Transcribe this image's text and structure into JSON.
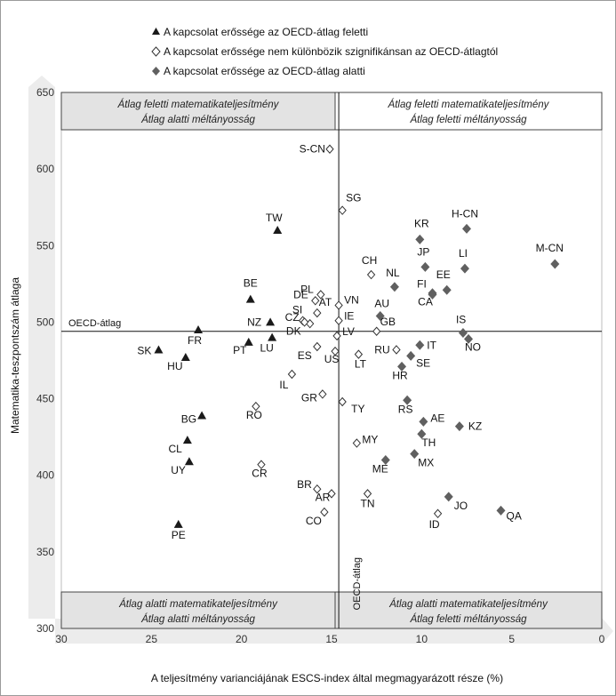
{
  "chart_data": {
    "type": "scatter",
    "xlabel": "A teljesítmény varianciájának ESCS-index által megmagyarázott része (%)",
    "ylabel": "Matematika-teszpontszám átlaga",
    "xlim": [
      30,
      0
    ],
    "ylim": [
      300,
      650
    ],
    "x_ticks": [
      30,
      25,
      20,
      15,
      10,
      5,
      0
    ],
    "y_ticks": [
      300,
      350,
      400,
      450,
      500,
      550,
      600,
      650
    ],
    "oecd_avg_x": 14.6,
    "oecd_avg_y": 494,
    "oecd_label_h": "OECD-átlag",
    "oecd_label_v": "OECD-átlag",
    "grid": false,
    "legend_position": "top",
    "legend": [
      {
        "key": "above",
        "marker": "triangle",
        "text": "A kapcsolat erőssége az OECD-átlag feletti"
      },
      {
        "key": "nosig",
        "marker": "diamond-open",
        "text": "A kapcsolat erőssége nem különbözik szignifikánsan az OECD-átlagtól"
      },
      {
        "key": "below",
        "marker": "diamond-filled",
        "text": "A kapcsolat erőssége az OECD-átlag alatti"
      }
    ],
    "quadrants": {
      "top_left": [
        "Átlag feletti matematikateljesítmény",
        "Átlag alatti méltányosság"
      ],
      "top_right": [
        "Átlag feletti matematikateljesítmény",
        "Átlag  feletti méltányosság"
      ],
      "bottom_left": [
        "Átlag alatti  matematikateljesítmény",
        "Átlag alatti méltányosság"
      ],
      "bottom_right": [
        "Átlag alatti  matematikateljesítmény",
        "Átlag feletti méltányosság"
      ]
    },
    "colors": {
      "marker": "#1a1a1a",
      "filled_diamond": "#606060",
      "band_fill": "#e3e3e3",
      "arrow_fill": "#ececec"
    },
    "points": [
      {
        "label": "S-CN",
        "x": 15.1,
        "y": 613,
        "cat": "nosig"
      },
      {
        "label": "SG",
        "x": 14.4,
        "y": 573,
        "cat": "nosig"
      },
      {
        "label": "TW",
        "x": 18.0,
        "y": 560,
        "cat": "above"
      },
      {
        "label": "KR",
        "x": 10.1,
        "y": 554,
        "cat": "below"
      },
      {
        "label": "H-CN",
        "x": 7.5,
        "y": 561,
        "cat": "below"
      },
      {
        "label": "M-CN",
        "x": 2.6,
        "y": 538,
        "cat": "below"
      },
      {
        "label": "JP",
        "x": 9.8,
        "y": 536,
        "cat": "below"
      },
      {
        "label": "LI",
        "x": 7.6,
        "y": 535,
        "cat": "below"
      },
      {
        "label": "CH",
        "x": 12.8,
        "y": 531,
        "cat": "nosig"
      },
      {
        "label": "NL",
        "x": 11.5,
        "y": 523,
        "cat": "below"
      },
      {
        "label": "EE",
        "x": 8.6,
        "y": 521,
        "cat": "below"
      },
      {
        "label": "FI",
        "x": 9.4,
        "y": 519,
        "cat": "below"
      },
      {
        "label": "CA",
        "x": 9.4,
        "y": 518,
        "cat": "below"
      },
      {
        "label": "BE",
        "x": 19.5,
        "y": 515,
        "cat": "above"
      },
      {
        "label": "SI",
        "x": 16.6,
        "y": 501,
        "cat": "nosig"
      },
      {
        "label": "CZ",
        "x": 16.2,
        "y": 499,
        "cat": "nosig"
      },
      {
        "label": "VN",
        "x": 14.6,
        "y": 511,
        "cat": "nosig"
      },
      {
        "label": "PL",
        "x": 15.6,
        "y": 518,
        "cat": "nosig"
      },
      {
        "label": "DE",
        "x": 15.9,
        "y": 514,
        "cat": "nosig"
      },
      {
        "label": "AU",
        "x": 12.3,
        "y": 504,
        "cat": "below"
      },
      {
        "label": "IS",
        "x": 7.7,
        "y": 493,
        "cat": "below"
      },
      {
        "label": "NO",
        "x": 7.4,
        "y": 489,
        "cat": "below"
      },
      {
        "label": "NZ",
        "x": 18.4,
        "y": 500,
        "cat": "above"
      },
      {
        "label": "IE",
        "x": 14.6,
        "y": 501,
        "cat": "nosig"
      },
      {
        "label": "GB",
        "x": 12.5,
        "y": 494,
        "cat": "nosig"
      },
      {
        "label": "AT",
        "x": 15.8,
        "y": 506,
        "cat": "nosig"
      },
      {
        "label": "DK",
        "x": 16.5,
        "y": 500,
        "cat": "nosig"
      },
      {
        "label": "FR",
        "x": 22.4,
        "y": 495,
        "cat": "above"
      },
      {
        "label": "PT",
        "x": 19.6,
        "y": 487,
        "cat": "above"
      },
      {
        "label": "LU",
        "x": 18.3,
        "y": 490,
        "cat": "above"
      },
      {
        "label": "LV",
        "x": 14.7,
        "y": 491,
        "cat": "nosig"
      },
      {
        "label": "RU",
        "x": 11.4,
        "y": 482,
        "cat": "nosig"
      },
      {
        "label": "IT",
        "x": 10.1,
        "y": 485,
        "cat": "below"
      },
      {
        "label": "SK",
        "x": 24.6,
        "y": 482,
        "cat": "above"
      },
      {
        "label": "HU",
        "x": 23.1,
        "y": 477,
        "cat": "above"
      },
      {
        "label": "ES",
        "x": 15.8,
        "y": 484,
        "cat": "nosig"
      },
      {
        "label": "US",
        "x": 14.8,
        "y": 481,
        "cat": "nosig"
      },
      {
        "label": "LT",
        "x": 13.5,
        "y": 479,
        "cat": "nosig"
      },
      {
        "label": "SE",
        "x": 10.6,
        "y": 478,
        "cat": "below"
      },
      {
        "label": "HR",
        "x": 11.1,
        "y": 471,
        "cat": "below"
      },
      {
        "label": "IL",
        "x": 17.2,
        "y": 466,
        "cat": "nosig"
      },
      {
        "label": "GR",
        "x": 15.5,
        "y": 453,
        "cat": "nosig"
      },
      {
        "label": "RS",
        "x": 10.8,
        "y": 449,
        "cat": "below"
      },
      {
        "label": "TY",
        "x": 14.4,
        "y": 448,
        "cat": "nosig"
      },
      {
        "label": "RO",
        "x": 19.2,
        "y": 445,
        "cat": "nosig"
      },
      {
        "label": "BG",
        "x": 22.2,
        "y": 439,
        "cat": "above"
      },
      {
        "label": "AE",
        "x": 9.9,
        "y": 435,
        "cat": "below"
      },
      {
        "label": "KZ",
        "x": 7.9,
        "y": 432,
        "cat": "below"
      },
      {
        "label": "TH",
        "x": 10.0,
        "y": 427,
        "cat": "below"
      },
      {
        "label": "CL",
        "x": 23.0,
        "y": 423,
        "cat": "above"
      },
      {
        "label": "MY",
        "x": 13.6,
        "y": 421,
        "cat": "nosig"
      },
      {
        "label": "MX",
        "x": 10.4,
        "y": 414,
        "cat": "below"
      },
      {
        "label": "ME",
        "x": 12.0,
        "y": 410,
        "cat": "below"
      },
      {
        "label": "UY",
        "x": 22.9,
        "y": 409,
        "cat": "above"
      },
      {
        "label": "CR",
        "x": 18.9,
        "y": 407,
        "cat": "nosig"
      },
      {
        "label": "BR",
        "x": 15.8,
        "y": 391,
        "cat": "nosig"
      },
      {
        "label": "AR",
        "x": 15.0,
        "y": 388,
        "cat": "nosig"
      },
      {
        "label": "TN",
        "x": 13.0,
        "y": 388,
        "cat": "nosig"
      },
      {
        "label": "JO",
        "x": 8.5,
        "y": 386,
        "cat": "below"
      },
      {
        "label": "CO",
        "x": 15.4,
        "y": 376,
        "cat": "nosig"
      },
      {
        "label": "ID",
        "x": 9.1,
        "y": 375,
        "cat": "nosig"
      },
      {
        "label": "QA",
        "x": 5.6,
        "y": 377,
        "cat": "below"
      },
      {
        "label": "PE",
        "x": 23.5,
        "y": 368,
        "cat": "above"
      }
    ]
  }
}
